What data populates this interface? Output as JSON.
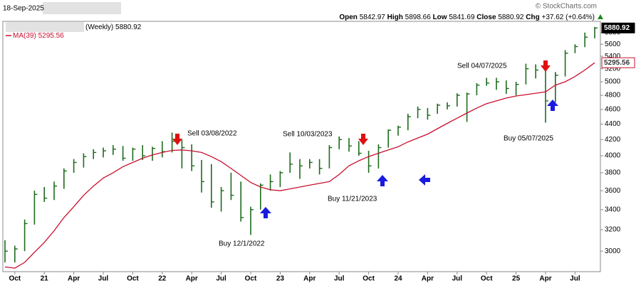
{
  "header": {
    "date": "18-Sep-2025",
    "watermark": "© StockCharts.com",
    "quote": {
      "open_label": "Open",
      "open": 5842.97,
      "high_label": "High",
      "high": 5898.66,
      "low_label": "Low",
      "low": 5841.69,
      "close_label": "Close",
      "close": 5880.92,
      "change_label": "Chg",
      "change": {
        "value": 37.62,
        "label": "+37.62"
      },
      "change_pct": {
        "value": 0.64,
        "label": "(+0.64%)"
      }
    }
  },
  "chart_data": {
    "type": "ohlc",
    "series_label": "(Weekly)",
    "color": "#1d6b1d",
    "categories": [
      null,
      "Oct",
      null,
      null,
      "21",
      null,
      null,
      "Apr",
      null,
      null,
      "Jul",
      null,
      null,
      "Oct",
      null,
      null,
      "22",
      null,
      null,
      "Apr",
      null,
      null,
      "Jul",
      null,
      null,
      "Oct",
      null,
      null,
      "23",
      null,
      null,
      "Apr",
      null,
      null,
      "Jul",
      null,
      null,
      "Oct",
      null,
      null,
      "24",
      null,
      null,
      "Apr",
      null,
      null,
      "Jul",
      null,
      null,
      "Oct",
      null,
      null,
      "25",
      null,
      null,
      "Apr",
      null,
      null,
      "Jul",
      null,
      null
    ],
    "high": [
      3100,
      3050,
      3300,
      3600,
      3640,
      3700,
      3850,
      3960,
      4030,
      4080,
      4100,
      4130,
      4120,
      4100,
      4130,
      4110,
      4180,
      4290,
      4200,
      4140,
      3950,
      3900,
      3640,
      3800,
      3700,
      3430,
      3680,
      3780,
      3820,
      4040,
      3960,
      3960,
      3960,
      4130,
      4240,
      4220,
      4180,
      4060,
      4140,
      4330,
      4380,
      4540,
      4640,
      4620,
      4680,
      4700,
      4830,
      4840,
      4980,
      5060,
      5060,
      5020,
      5000,
      5280,
      5270,
      5200,
      5150,
      5500,
      5600,
      5800,
      5898.66
    ],
    "low": [
      2900,
      2900,
      3000,
      3250,
      3480,
      3500,
      3620,
      3800,
      3860,
      3960,
      3980,
      4010,
      3940,
      3940,
      3950,
      3940,
      3980,
      4040,
      3850,
      3820,
      3580,
      3420,
      3380,
      3500,
      3280,
      3150,
      3400,
      3600,
      3640,
      3800,
      3730,
      3850,
      3780,
      3850,
      4080,
      4050,
      4000,
      3800,
      3850,
      4100,
      4250,
      4320,
      4480,
      4460,
      4540,
      4600,
      4640,
      4430,
      4800,
      4940,
      4880,
      4820,
      4800,
      4960,
      5050,
      4420,
      4700,
      5080,
      5450,
      5550,
      5700
    ],
    "close": [
      3000,
      3020,
      3260,
      3560,
      3520,
      3650,
      3820,
      3920,
      3990,
      4040,
      4060,
      4080,
      3970,
      4080,
      4000,
      4090,
      4050,
      4180,
      4100,
      3880,
      3700,
      3480,
      3600,
      3550,
      3320,
      3400,
      3660,
      3700,
      3800,
      3900,
      3880,
      3920,
      3850,
      4100,
      4200,
      4120,
      4030,
      3880,
      4100,
      4320,
      4360,
      4500,
      4600,
      4520,
      4660,
      4650,
      4800,
      4820,
      4950,
      4980,
      5000,
      4900,
      4960,
      5200,
      5180,
      4720,
      5100,
      5450,
      5560,
      5720,
      5880.92
    ],
    "moving_average": {
      "name": "MA(39)",
      "color": "#c8102e",
      "values": [
        2860,
        2850,
        2900,
        2990,
        3080,
        3190,
        3320,
        3430,
        3550,
        3650,
        3740,
        3800,
        3870,
        3920,
        3970,
        4010,
        4040,
        4065,
        4070,
        4060,
        4040,
        3990,
        3930,
        3850,
        3770,
        3690,
        3640,
        3610,
        3600,
        3620,
        3640,
        3660,
        3680,
        3700,
        3780,
        3880,
        3940,
        3990,
        4030,
        4070,
        4110,
        4170,
        4220,
        4270,
        4340,
        4410,
        4480,
        4550,
        4620,
        4680,
        4720,
        4760,
        4790,
        4810,
        4830,
        4850,
        4950,
        5000,
        5080,
        5180,
        5295.56
      ]
    },
    "ylim": [
      2820,
      6000
    ],
    "yticks": [
      3000,
      3200,
      3400,
      3600,
      3800,
      4000,
      4200,
      4400,
      4600,
      4800,
      5000,
      5200,
      5400,
      5600,
      5800
    ],
    "log_scale": true,
    "grid": false,
    "annotations": [
      "Sell 03/08/2022",
      "Buy 12/1/2022",
      "Sell 10/03/2023",
      "Buy 11/21/2023",
      "Sell 04/07/2025",
      "Buy 05/07/2025"
    ]
  }
}
